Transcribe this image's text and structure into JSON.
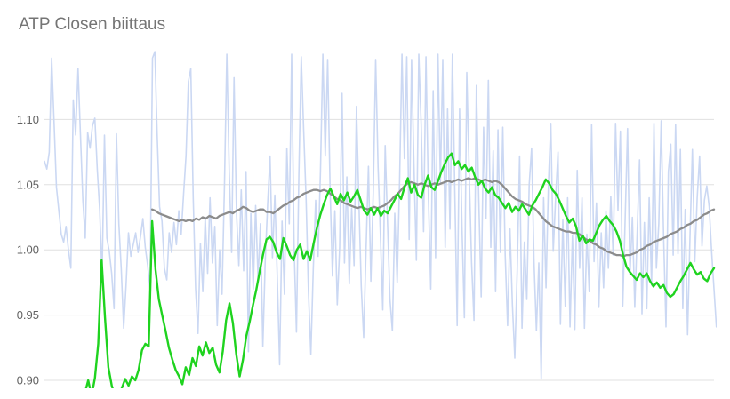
{
  "chart_data": {
    "type": "line",
    "title": "ATP Closen biittaus",
    "grid": true,
    "legend": "none",
    "ylim": [
      0.894,
      1.153
    ],
    "yticks": [
      0.9,
      0.95,
      1.0,
      1.05,
      1.1
    ],
    "ytick_labels": [
      "0.90",
      "0.95",
      "1.00",
      "1.05",
      "1.10"
    ],
    "gridline_color": "#e0e0e0",
    "label_color": "#616161",
    "title_color": "#757575",
    "series": [
      {
        "name": "blue",
        "color": "#cbd8f3",
        "width": 1.6,
        "start": 0,
        "x_count": 280,
        "values": [
          1.068,
          1.062,
          1.075,
          1.147,
          1.098,
          1.048,
          1.03,
          1.012,
          1.006,
          1.018,
          1.0,
          0.986,
          1.115,
          1.088,
          1.139,
          1.088,
          1.038,
          1.009,
          1.09,
          1.078,
          1.095,
          1.101,
          1.062,
          1.031,
          0.979,
          1.088,
          1.009,
          0.999,
          0.982,
          0.955,
          1.089,
          1.02,
          0.985,
          0.94,
          0.973,
          1.013,
          0.995,
          1.004,
          1.013,
          0.998,
          1.01,
          1.024,
          1.002,
          0.988,
          0.97,
          1.147,
          1.152,
          1.088,
          1.033,
          1.022,
          0.986,
          0.977,
          1.013,
          0.998,
          1.021,
          1.004,
          1.03,
          1.012,
          1.043,
          1.072,
          1.129,
          1.139,
          1.04,
          0.97,
          0.936,
          1.005,
          0.968,
          1.025,
          0.982,
          1.04,
          0.99,
          1.018,
          0.942,
          1.0,
          0.966,
          1.048,
          1.15,
          1.06,
          0.998,
          1.132,
          1.03,
          0.988,
          1.046,
          0.984,
          1.06,
          0.922,
          1.028,
          0.97,
          1.034,
          0.978,
          1.02,
          0.926,
          0.992,
          1.035,
          1.072,
          0.994,
          1.042,
          0.98,
          0.912,
          1.022,
          0.966,
          1.078,
          1.02,
          1.15,
          1.004,
          0.937,
          1.058,
          1.148,
          1.092,
          1.04,
          0.968,
          0.92,
          0.985,
          1.038,
          0.995,
          1.06,
          1.15,
          1.072,
          1.146,
          1.048,
          0.98,
          1.03,
          0.958,
          1.002,
          1.12,
          0.99,
          1.056,
          0.974,
          1.032,
          0.988,
          1.11,
          1.038,
          0.972,
          0.933,
          1.0,
          1.064,
          0.976,
          1.044,
          1.146,
          1.064,
          1.012,
          0.954,
          1.08,
          1.02,
          0.962,
          0.938,
          1.028,
          0.975,
          1.052,
          1.15,
          1.07,
          1.148,
          1.008,
          1.146,
          1.064,
          0.992,
          1.15,
          1.096,
          1.014,
          1.148,
          1.042,
          0.97,
          1.122,
          0.994,
          1.15,
          1.052,
          1.146,
          1.002,
          1.108,
          1.016,
          1.15,
          1.046,
          0.942,
          1.108,
          1.018,
          0.948,
          1.136,
          1.06,
          0.99,
          0.946,
          1.126,
          1.038,
          0.964,
          1.094,
          1.024,
          1.13,
          1.002,
          1.076,
          0.968,
          1.092,
          0.998,
          1.094,
          0.996,
          0.942,
          1.016,
          0.958,
          0.917,
          0.984,
          1.072,
          0.94,
          1.006,
          0.962,
          1.05,
          1.078,
          0.991,
          0.938,
          0.99,
          0.901,
          1.04,
          0.971,
          1.05,
          1.097,
          0.999,
          1.04,
          1.075,
          0.943,
          1.023,
          0.957,
          1.04,
          0.941,
          1.011,
          0.939,
          1.061,
          0.986,
          1.04,
          0.94,
          1.012,
          0.968,
          1.096,
          0.991,
          1.036,
          0.956,
          1.013,
          0.971,
          1.03,
          0.986,
          1.041,
          0.996,
          1.097,
          1.03,
          1.091,
          0.957,
          1.024,
          1.093,
          0.981,
          1.025,
          0.956,
          1.013,
          1.069,
          0.951,
          1.021,
          0.955,
          1.04,
          0.973,
          1.097,
          0.986,
          1.02,
          1.099,
          1.011,
          0.941,
          1.06,
          1.081,
          0.996,
          1.096,
          0.997,
          1.077,
          0.955,
          1.031,
          0.935,
          1.01,
          1.077,
          0.991,
          1.04,
          1.072,
          1.003,
          1.038,
          1.049,
          1.033,
          0.999,
          0.97,
          0.941
        ]
      },
      {
        "name": "gray",
        "color": "#8c8c8c",
        "width": 2.3,
        "start": 32,
        "x_count": 200,
        "values": [
          1.031,
          1.03,
          1.028,
          1.027,
          1.026,
          1.025,
          1.024,
          1.023,
          1.022,
          1.023,
          1.022,
          1.023,
          1.022,
          1.024,
          1.023,
          1.025,
          1.024,
          1.026,
          1.025,
          1.024,
          1.026,
          1.027,
          1.028,
          1.029,
          1.028,
          1.03,
          1.031,
          1.033,
          1.032,
          1.03,
          1.029,
          1.03,
          1.031,
          1.031,
          1.029,
          1.029,
          1.028,
          1.03,
          1.032,
          1.034,
          1.035,
          1.037,
          1.038,
          1.04,
          1.041,
          1.043,
          1.044,
          1.045,
          1.046,
          1.046,
          1.045,
          1.046,
          1.045,
          1.043,
          1.041,
          1.039,
          1.038,
          1.036,
          1.035,
          1.034,
          1.033,
          1.032,
          1.033,
          1.032,
          1.031,
          1.032,
          1.033,
          1.032,
          1.033,
          1.034,
          1.036,
          1.038,
          1.041,
          1.043,
          1.046,
          1.049,
          1.051,
          1.052,
          1.051,
          1.05,
          1.051,
          1.05,
          1.049,
          1.05,
          1.051,
          1.05,
          1.051,
          1.052,
          1.053,
          1.052,
          1.053,
          1.054,
          1.053,
          1.054,
          1.055,
          1.054,
          1.055,
          1.054,
          1.053,
          1.054,
          1.053,
          1.052,
          1.053,
          1.052,
          1.05,
          1.047,
          1.044,
          1.041,
          1.039,
          1.038,
          1.037,
          1.035,
          1.034,
          1.033,
          1.031,
          1.028,
          1.025,
          1.022,
          1.02,
          1.018,
          1.017,
          1.016,
          1.015,
          1.014,
          1.014,
          1.013,
          1.013,
          1.012,
          1.01,
          1.008,
          1.007,
          1.005,
          1.004,
          1.002,
          1.001,
          0.999,
          0.998,
          0.997,
          0.996,
          0.996,
          0.995,
          0.996,
          0.996,
          0.997,
          0.998,
          1.0,
          1.001,
          1.003,
          1.004,
          1.006,
          1.007,
          1.008,
          1.009,
          1.01,
          1.012,
          1.013,
          1.014,
          1.016,
          1.017,
          1.019,
          1.02,
          1.022,
          1.023,
          1.025,
          1.027,
          1.028,
          1.03,
          1.031
        ]
      },
      {
        "name": "green",
        "color": "#1fd31f",
        "width": 2.4,
        "start": 12,
        "x_count": 200,
        "values": [
          0.89,
          0.9,
          0.888,
          0.902,
          0.928,
          0.992,
          0.948,
          0.91,
          0.896,
          0.887,
          0.884,
          0.894,
          0.901,
          0.896,
          0.903,
          0.9,
          0.908,
          0.923,
          0.928,
          0.926,
          1.022,
          0.985,
          0.962,
          0.95,
          0.938,
          0.925,
          0.916,
          0.908,
          0.903,
          0.897,
          0.91,
          0.904,
          0.917,
          0.911,
          0.926,
          0.919,
          0.929,
          0.921,
          0.925,
          0.912,
          0.906,
          0.922,
          0.946,
          0.959,
          0.944,
          0.92,
          0.903,
          0.916,
          0.934,
          0.945,
          0.958,
          0.97,
          0.984,
          0.997,
          1.008,
          1.01,
          1.006,
          0.998,
          0.993,
          1.009,
          1.003,
          0.996,
          0.992,
          1.0,
          1.004,
          0.993,
          0.999,
          0.992,
          1.005,
          1.017,
          1.027,
          1.035,
          1.042,
          1.047,
          1.041,
          1.035,
          1.043,
          1.038,
          1.044,
          1.037,
          1.041,
          1.046,
          1.038,
          1.03,
          1.027,
          1.032,
          1.027,
          1.032,
          1.026,
          1.03,
          1.028,
          1.033,
          1.038,
          1.043,
          1.039,
          1.048,
          1.055,
          1.044,
          1.05,
          1.042,
          1.04,
          1.05,
          1.057,
          1.048,
          1.046,
          1.053,
          1.06,
          1.066,
          1.071,
          1.074,
          1.065,
          1.068,
          1.062,
          1.065,
          1.06,
          1.063,
          1.056,
          1.05,
          1.053,
          1.047,
          1.044,
          1.048,
          1.042,
          1.04,
          1.036,
          1.032,
          1.036,
          1.029,
          1.033,
          1.03,
          1.035,
          1.031,
          1.027,
          1.034,
          1.038,
          1.043,
          1.048,
          1.054,
          1.051,
          1.046,
          1.043,
          1.038,
          1.032,
          1.026,
          1.021,
          1.024,
          1.018,
          1.007,
          1.011,
          1.005,
          1.008,
          1.007,
          1.013,
          1.019,
          1.023,
          1.026,
          1.022,
          1.019,
          1.014,
          1.007,
          0.996,
          0.987,
          0.983,
          0.98,
          0.977,
          0.982,
          0.979,
          0.982,
          0.976,
          0.972,
          0.975,
          0.971,
          0.973,
          0.967,
          0.964,
          0.966,
          0.971,
          0.976,
          0.98,
          0.985,
          0.99,
          0.985,
          0.981,
          0.983,
          0.978,
          0.976,
          0.982,
          0.986
        ]
      }
    ]
  }
}
